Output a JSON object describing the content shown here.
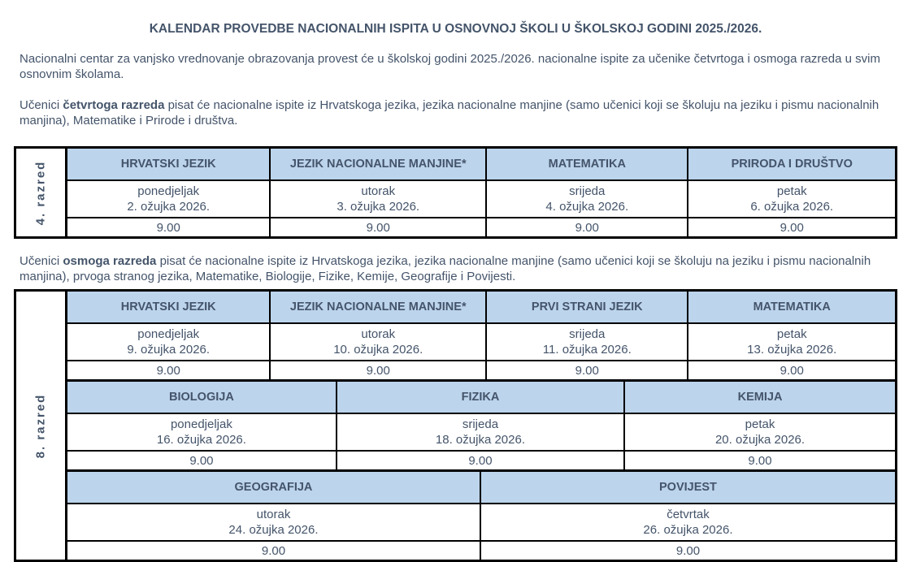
{
  "colors": {
    "header_bg": "#BCD4EC",
    "text": "#44546A",
    "border": "#000000"
  },
  "title": "KALENDAR PROVEDBE NACIONALNIH ISPITA U OSNOVNOJ ŠKOLI U ŠKOLSKOJ GODINI 2025./2026.",
  "paragraphs": {
    "intro": "Nacionalni centar za vanjsko vrednovanje obrazovanja provest će u školskoj godini 2025./2026. nacionalne ispite za učenike četvrtoga i osmoga razreda u svim osnovnim školama.",
    "grade4_prefix": "Učenici ",
    "grade4_bold": "četvrtoga razreda",
    "grade4_rest": " pisat će nacionalne ispite iz Hrvatskoga jezika, jezika nacionalne manjine (samo učenici koji se školuju na jeziku i pismu nacionalnih manjina), Matematike i Prirode i društva.",
    "grade8_prefix": "Učenici ",
    "grade8_bold": "osmoga razreda",
    "grade8_rest": " pisat će nacionalne ispite iz Hrvatskoga jezika, jezika nacionalne manjine (samo učenici koji se školuju na jeziku i pismu nacionalnih manjina), prvoga stranog jezika, Matematike, Biologije, Fizike, Kemije, Geografije i Povijesti."
  },
  "table_grade4": {
    "row_label": "4. razred",
    "columns": [
      {
        "subject": "HRVATSKI JEZIK",
        "day": "ponedjeljak",
        "date": "2. ožujka 2026.",
        "time": "9.00"
      },
      {
        "subject": "JEZIK NACIONALNE MANJINE*",
        "day": "utorak",
        "date": "3. ožujka 2026.",
        "time": "9.00"
      },
      {
        "subject": "MATEMATIKA",
        "day": "srijeda",
        "date": "4. ožujka 2026.",
        "time": "9.00"
      },
      {
        "subject": "PRIRODA I DRUŠTVO",
        "day": "petak",
        "date": "6. ožujka 2026.",
        "time": "9.00"
      }
    ]
  },
  "table_grade8": {
    "row_label": "8. razred",
    "sections": [
      {
        "columns": [
          {
            "subject": "HRVATSKI JEZIK",
            "day": "ponedjeljak",
            "date": "9. ožujka 2026.",
            "time": "9.00"
          },
          {
            "subject": "JEZIK NACIONALNE MANJINE*",
            "day": "utorak",
            "date": "10. ožujka 2026.",
            "time": "9.00"
          },
          {
            "subject": "PRVI STRANI JEZIK",
            "day": "srijeda",
            "date": "11. ožujka 2026.",
            "time": "9.00"
          },
          {
            "subject": "MATEMATIKA",
            "day": "petak",
            "date": "13. ožujka 2026.",
            "time": "9.00"
          }
        ]
      },
      {
        "columns": [
          {
            "subject": "BIOLOGIJA",
            "day": "ponedjeljak",
            "date": "16. ožujka 2026.",
            "time": "9.00"
          },
          {
            "subject": "FIZIKA",
            "day": "srijeda",
            "date": "18. ožujka 2026.",
            "time": "9.00"
          },
          {
            "subject": "KEMIJA",
            "day": "petak",
            "date": "20. ožujka 2026.",
            "time": "9.00"
          }
        ]
      },
      {
        "columns": [
          {
            "subject": "GEOGRAFIJA",
            "day": "utorak",
            "date": "24. ožujka 2026.",
            "time": "9.00"
          },
          {
            "subject": "POVIJEST",
            "day": "četvrtak",
            "date": "26. ožujka 2026.",
            "time": "9.00"
          }
        ]
      }
    ]
  }
}
